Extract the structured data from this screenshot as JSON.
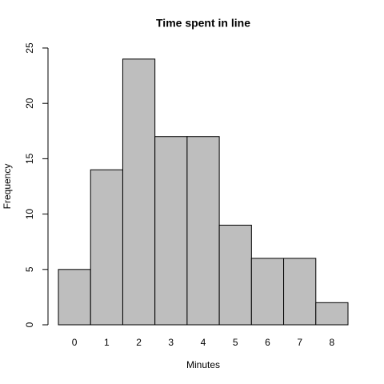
{
  "chart_data": {
    "type": "bar",
    "title": "Time spent in line",
    "x_label": "Minutes",
    "y_label": "Frequency",
    "categories": [
      "0",
      "1",
      "2",
      "3",
      "4",
      "5",
      "6",
      "7",
      "8"
    ],
    "values": [
      5,
      14,
      24,
      17,
      17,
      9,
      6,
      6,
      2
    ],
    "color": "#bebebe",
    "ylim": [
      0,
      25
    ],
    "yticks": [
      0,
      5,
      10,
      15,
      20,
      25
    ],
    "grid": false
  }
}
